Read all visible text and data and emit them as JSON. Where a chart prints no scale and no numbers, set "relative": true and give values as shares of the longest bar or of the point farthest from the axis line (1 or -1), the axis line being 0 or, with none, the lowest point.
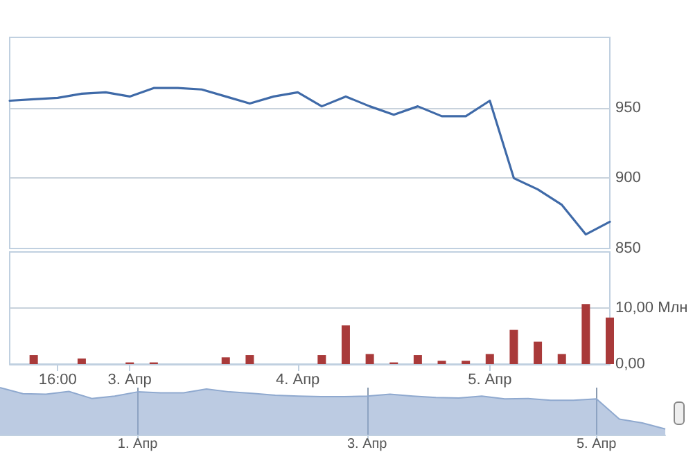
{
  "chart_data": [
    {
      "type": "line",
      "categories": [
        null,
        null,
        null,
        null,
        null,
        null,
        null,
        null,
        null,
        null,
        null,
        null,
        null,
        null,
        null,
        null,
        null,
        null,
        null,
        null,
        null,
        null,
        null,
        null,
        null,
        null
      ],
      "series": [
        {
          "color": "#3f6aa8",
          "values": [
            955,
            956,
            957,
            960,
            961,
            958,
            964,
            964,
            963,
            958,
            953,
            958,
            961,
            951,
            958,
            951,
            945,
            951,
            944,
            944,
            955,
            900,
            892,
            881,
            860,
            869
          ]
        }
      ],
      "ylim": [
        850,
        1000
      ],
      "yticks": [
        850,
        900,
        950
      ],
      "grid": "y",
      "tick_labels": "y",
      "marker": "none",
      "line_style": "solid"
    },
    {
      "type": "bar",
      "categories": [
        null,
        null,
        "16:00",
        null,
        null,
        "3. Апр",
        null,
        null,
        null,
        null,
        null,
        null,
        "4. Апр",
        null,
        null,
        null,
        null,
        null,
        null,
        null,
        "5. Апр",
        null,
        null,
        null,
        null,
        null
      ],
      "series": [
        {
          "color": "#a93a3a",
          "values": [
            null,
            1.6,
            null,
            1.0,
            null,
            0.3,
            0.3,
            null,
            null,
            1.2,
            1.6,
            null,
            null,
            1.6,
            6.9,
            1.8,
            0.3,
            1.6,
            0.6,
            0.6,
            1.8,
            6.1,
            4.0,
            1.8,
            10.7,
            8.3
          ]
        }
      ],
      "ylim": [
        0,
        20
      ],
      "yticks": [
        {
          "value": 0,
          "label": "0,00"
        },
        {
          "value": 10,
          "label": "10,00 Млн"
        }
      ],
      "grid": "y"
    },
    {
      "type": "area",
      "relative": true,
      "categories": [
        null,
        null,
        null,
        null,
        null,
        null,
        "1. Апр",
        null,
        null,
        null,
        null,
        null,
        null,
        null,
        null,
        null,
        "3. Апр",
        null,
        null,
        null,
        null,
        null,
        null,
        null,
        null,
        null,
        "5. Апр",
        null,
        null,
        null
      ],
      "series": [
        {
          "color": "#8fa9cf",
          "values": [
            1.0,
            0.87,
            0.86,
            0.92,
            0.77,
            0.82,
            0.91,
            0.89,
            0.89,
            0.97,
            0.91,
            0.88,
            0.84,
            0.82,
            0.81,
            0.81,
            0.82,
            0.86,
            0.82,
            0.79,
            0.78,
            0.82,
            0.76,
            0.77,
            0.73,
            0.73,
            0.76,
            0.33,
            0.25,
            0.12
          ]
        }
      ],
      "grid": "x"
    }
  ]
}
